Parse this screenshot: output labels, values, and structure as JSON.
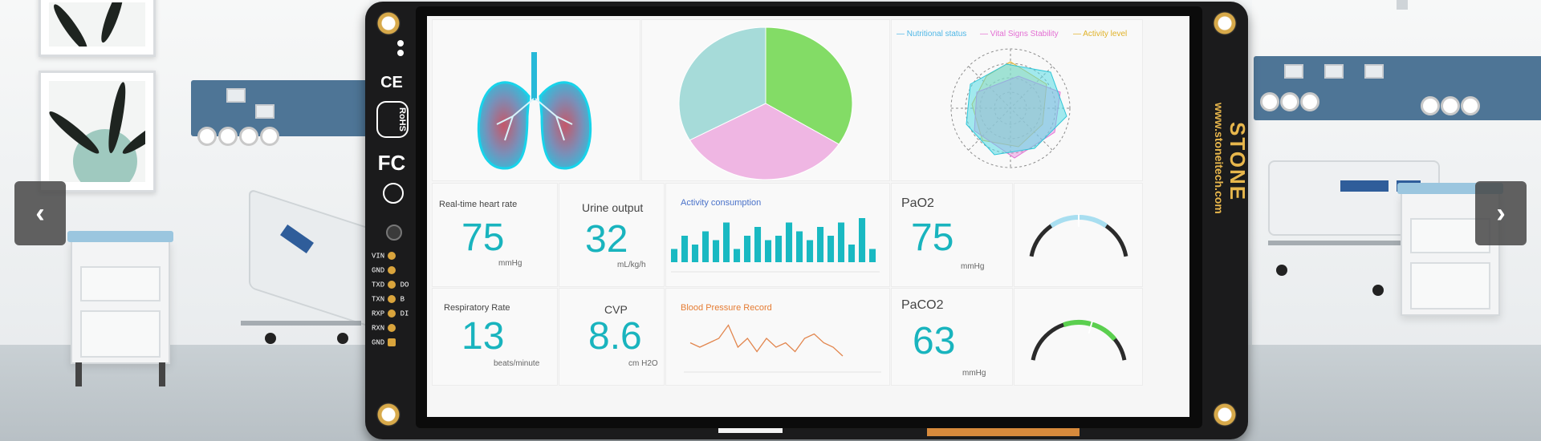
{
  "device": {
    "brand": "STONE",
    "url": "www.stoneitech.com",
    "certifications": [
      "CE",
      "RoHS",
      "FC"
    ],
    "pins": [
      "VIN",
      "GND",
      "TXD",
      "TXN",
      "RXP",
      "RXN",
      "GND"
    ],
    "pin_side_labels": [
      "DO",
      "B",
      "DI"
    ]
  },
  "dashboard": {
    "radar_legend": [
      {
        "label": "Nutritional status",
        "color": "#4fb7e6"
      },
      {
        "label": "Vital Signs Stability",
        "color": "#e36fd3"
      },
      {
        "label": "Activity level",
        "color": "#f0c03a"
      }
    ],
    "heart_rate": {
      "label": "Real-time heart rate",
      "value": "75",
      "unit": "mmHg"
    },
    "urine": {
      "label": "Urine output",
      "value": "32",
      "unit": "mL/kg/h"
    },
    "activity": {
      "title": "Activity consumption"
    },
    "pao2": {
      "label": "PaO2",
      "value": "75",
      "unit": "mmHg",
      "gauge_fraction": 0.5,
      "gauge_color": "#a8def0"
    },
    "resp": {
      "label": "Respiratory Rate",
      "value": "13",
      "unit": "beats/minute"
    },
    "cvp": {
      "label": "CVP",
      "value": "8.6",
      "unit": "cm H2O"
    },
    "bp": {
      "title": "Blood Pressure Record"
    },
    "paco2": {
      "label": "PaCO2",
      "value": "63",
      "unit": "mmHg",
      "gauge_fraction": 0.6,
      "gauge_color": "#5bcf4f"
    }
  },
  "chart_data": [
    {
      "type": "pie",
      "slices": [
        {
          "value": 34,
          "color": "#83dc66"
        },
        {
          "value": 33,
          "color": "#efb6e3"
        },
        {
          "value": 33,
          "color": "#a6dbd9"
        }
      ]
    },
    {
      "type": "bar",
      "values": [
        3,
        6,
        4,
        7,
        5,
        9,
        3,
        6,
        8,
        5,
        6,
        9,
        7,
        5,
        8,
        6,
        9,
        4,
        10,
        3
      ],
      "color": "#19b9c2",
      "ylim": [
        0,
        10
      ]
    },
    {
      "type": "line",
      "values": [
        5,
        4,
        5,
        6,
        9,
        4,
        6,
        3,
        6,
        4,
        5,
        3,
        6,
        7,
        5,
        4,
        2
      ],
      "color": "#e2864e",
      "ylim": [
        0,
        10
      ]
    }
  ],
  "nav": {
    "prev": "‹",
    "next": "›"
  }
}
